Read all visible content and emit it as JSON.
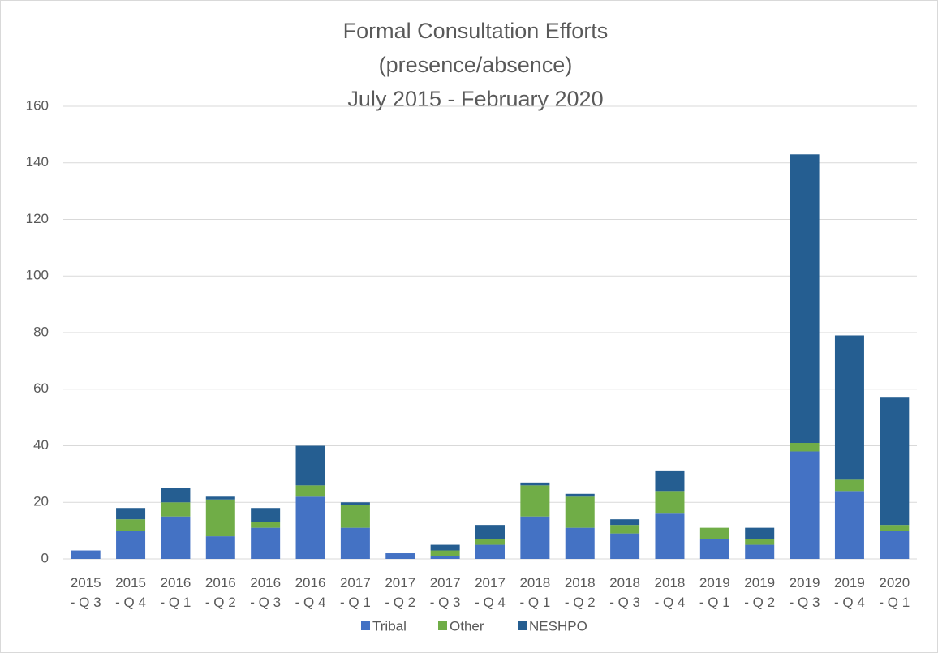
{
  "chart_data": {
    "type": "stacked_bar",
    "title": [
      "Formal Consultation Efforts",
      "(presence/absence)",
      "July 2015 - February 2020"
    ],
    "categories": [
      "2015 - Q 3",
      "2015 - Q 4",
      "2016 - Q 1",
      "2016 - Q 2",
      "2016 - Q 3",
      "2016 - Q 4",
      "2017 - Q 1",
      "2017 - Q 2",
      "2017 - Q 3",
      "2017 - Q 4",
      "2018 - Q 1",
      "2018 - Q 2",
      "2018 - Q 3",
      "2018 - Q 4",
      "2019 - Q 1",
      "2019 - Q 2",
      "2019 - Q 3",
      "2019 - Q 4",
      "2020 - Q 1"
    ],
    "series": [
      {
        "name": "Tribal",
        "color": "#4472c4",
        "values": [
          3,
          10,
          15,
          8,
          11,
          22,
          11,
          2,
          1,
          5,
          15,
          11,
          9,
          16,
          7,
          5,
          38,
          24,
          10
        ]
      },
      {
        "name": "Other",
        "color": "#70ad47",
        "values": [
          0,
          4,
          5,
          13,
          2,
          4,
          8,
          0,
          2,
          2,
          11,
          11,
          3,
          8,
          4,
          2,
          3,
          4,
          2
        ]
      },
      {
        "name": "NESHPO",
        "color": "#255e91",
        "values": [
          0,
          4,
          5,
          1,
          5,
          14,
          1,
          0,
          2,
          5,
          1,
          1,
          2,
          7,
          0,
          4,
          102,
          51,
          45
        ]
      }
    ],
    "ylim": [
      0,
      160
    ],
    "yticks": [
      0,
      20,
      40,
      60,
      80,
      100,
      120,
      140,
      160
    ],
    "grid": true,
    "legend": "bottom"
  }
}
